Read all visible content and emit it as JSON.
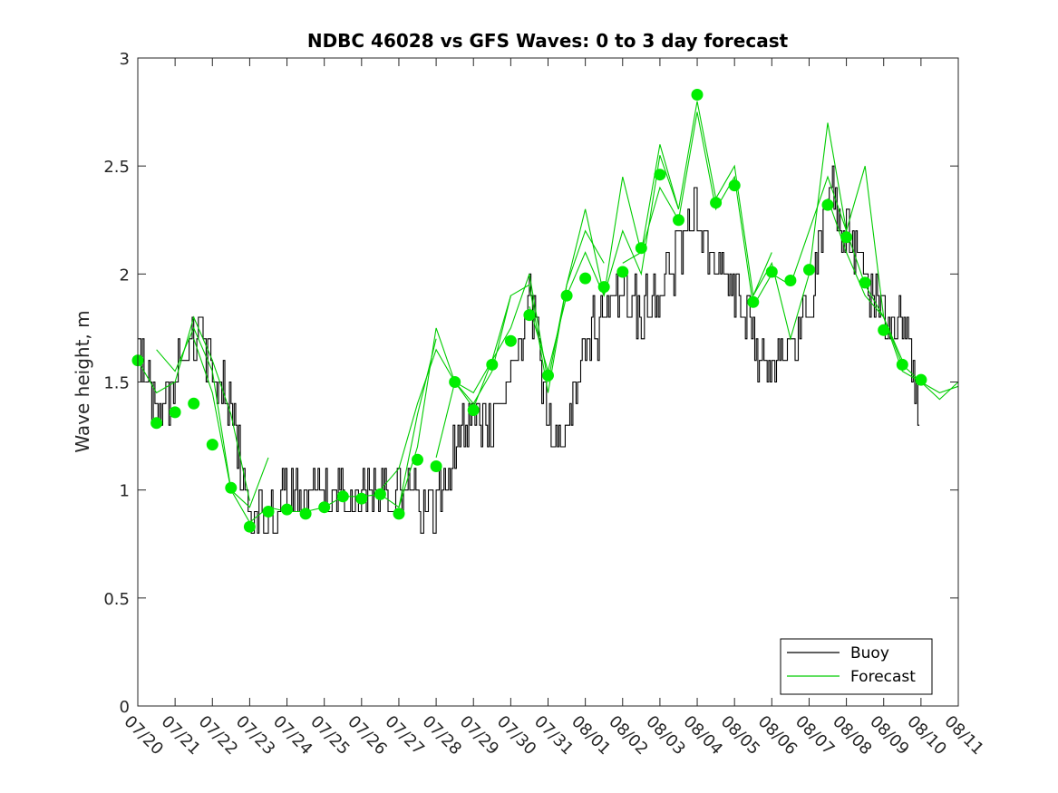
{
  "chart_data": {
    "type": "line",
    "title": "NDBC 46028 vs GFS Waves: 0 to 3 day forecast",
    "xlabel": "",
    "ylabel": "Wave height, m",
    "ylim": [
      0,
      3
    ],
    "yticks": [
      "0",
      "0.5",
      "1",
      "1.5",
      "2",
      "2.5",
      "3"
    ],
    "xlim": [
      "07/20",
      "08/11"
    ],
    "xticks": [
      "07/20",
      "07/21",
      "07/22",
      "07/23",
      "07/24",
      "07/25",
      "07/26",
      "07/27",
      "07/28",
      "07/29",
      "07/30",
      "07/31",
      "08/01",
      "08/02",
      "08/03",
      "08/04",
      "08/05",
      "08/06",
      "08/07",
      "08/08",
      "08/09",
      "08/10",
      "08/11"
    ],
    "grid": false,
    "legend": {
      "position": "bottom-right",
      "entries": [
        "Buoy",
        "Forecast"
      ]
    },
    "colors": {
      "buoy": "#000000",
      "forecast": "#00cc00",
      "analysis_dots": "#00ee00"
    },
    "buoy": {
      "x": [
        "07/20",
        "07/20 12:00",
        "07/21",
        "07/21 12:00",
        "07/22",
        "07/22 12:00",
        "07/23",
        "07/23 12:00",
        "07/24",
        "07/24 12:00",
        "07/25",
        "07/25 12:00",
        "07/26",
        "07/26 12:00",
        "07/27",
        "07/27 12:00",
        "07/28",
        "07/28 12:00",
        "07/29",
        "07/29 12:00",
        "07/30",
        "07/30 12:00",
        "07/31",
        "07/31 12:00",
        "08/01",
        "08/01 12:00",
        "08/02",
        "08/02 12:00",
        "08/03",
        "08/03 12:00",
        "08/04",
        "08/04 12:00",
        "08/05",
        "08/05 12:00",
        "08/06",
        "08/06 12:00",
        "08/07",
        "08/07 12:00",
        "08/08",
        "08/08 12:00",
        "08/09",
        "08/09 12:00",
        "08/10"
      ],
      "values": [
        1.7,
        1.35,
        1.5,
        1.75,
        1.6,
        1.4,
        0.9,
        0.85,
        1.0,
        1.0,
        1.0,
        1.0,
        1.0,
        1.0,
        0.95,
        0.95,
        0.9,
        1.2,
        1.35,
        1.25,
        1.5,
        1.9,
        1.3,
        1.25,
        1.7,
        1.8,
        1.9,
        1.85,
        1.9,
        2.1,
        2.3,
        2.0,
        1.95,
        1.7,
        1.55,
        1.75,
        1.8,
        2.4,
        2.2,
        1.95,
        1.8,
        1.75,
        1.35
      ]
    },
    "forecast": [
      {
        "x": [
          "07/20",
          "07/20 12:00",
          "07/21",
          "07/21 12:00",
          "07/22",
          "07/22 12:00",
          "07/23"
        ],
        "values": [
          1.6,
          1.45,
          1.5,
          1.8,
          1.6,
          1.35,
          0.95
        ]
      },
      {
        "x": [
          "07/20 12:00",
          "07/21",
          "07/21 12:00",
          "07/22",
          "07/22 12:00",
          "07/23",
          "07/23 12:00"
        ],
        "values": [
          1.65,
          1.55,
          1.75,
          1.55,
          1.0,
          0.92,
          1.15
        ]
      },
      {
        "x": [
          "07/21 12:00",
          "07/22",
          "07/22 12:00",
          "07/23",
          "07/23 12:00",
          "07/24",
          "07/24 12:00",
          "07/25",
          "07/25 12:00",
          "07/26",
          "07/26 12:00",
          "07/27",
          "07/27 12:00",
          "07/28"
        ],
        "values": [
          1.7,
          1.45,
          1.0,
          0.85,
          0.92,
          0.9,
          0.9,
          0.92,
          0.97,
          0.97,
          0.98,
          0.92,
          1.35,
          1.7
        ]
      },
      {
        "x": [
          "07/26 12:00",
          "07/27",
          "07/27 12:00",
          "07/28",
          "07/28 12:00",
          "07/29",
          "07/29 12:00",
          "07/30"
        ],
        "values": [
          1.0,
          1.1,
          1.4,
          1.65,
          1.5,
          1.45,
          1.6,
          1.9
        ]
      },
      {
        "x": [
          "07/27",
          "07/27 12:00",
          "07/28",
          "07/28 12:00",
          "07/29",
          "07/29 12:00",
          "07/30",
          "07/30 12:00",
          "07/31",
          "07/31 12:00",
          "08/01",
          "08/01 12:00"
        ],
        "values": [
          0.92,
          1.2,
          1.75,
          1.5,
          1.4,
          1.55,
          1.9,
          1.95,
          1.45,
          1.95,
          2.2,
          2.05
        ]
      },
      {
        "x": [
          "07/28",
          "07/28 12:00",
          "07/29",
          "07/29 12:00",
          "07/30",
          "07/30 12:00",
          "07/31",
          "07/31 12:00",
          "08/01",
          "08/01 12:00",
          "08/02",
          "08/02 12:00",
          "08/03",
          "08/03 12:00"
        ],
        "values": [
          1.15,
          1.5,
          1.38,
          1.6,
          1.75,
          2.0,
          1.5,
          1.95,
          2.3,
          1.9,
          2.45,
          2.1,
          2.6,
          2.3
        ]
      },
      {
        "x": [
          "07/30 12:00",
          "07/31",
          "07/31 12:00",
          "08/01",
          "08/01 12:00",
          "08/02",
          "08/02 12:00",
          "08/03",
          "08/03 12:00",
          "08/04",
          "08/04 12:00",
          "08/05",
          "08/05 12:00",
          "08/06"
        ],
        "values": [
          1.85,
          1.55,
          1.9,
          2.1,
          1.9,
          2.2,
          2.0,
          2.55,
          2.3,
          2.8,
          2.35,
          2.5,
          1.9,
          2.1
        ]
      },
      {
        "x": [
          "08/02",
          "08/02 12:00",
          "08/03",
          "08/03 12:00",
          "08/04",
          "08/04 12:00",
          "08/05",
          "08/05 12:00",
          "08/06",
          "08/06 12:00",
          "08/07",
          "08/07 12:00",
          "08/08",
          "08/08 12:00",
          "08/09",
          "08/09 12:00"
        ],
        "values": [
          2.05,
          2.1,
          2.4,
          2.25,
          2.75,
          2.3,
          2.45,
          1.85,
          2.0,
          1.95,
          2.2,
          2.45,
          2.2,
          1.95,
          1.8,
          1.6
        ]
      },
      {
        "x": [
          "08/05 12:00",
          "08/06",
          "08/06 12:00",
          "08/07",
          "08/07 12:00",
          "08/08",
          "08/08 12:00",
          "08/09",
          "08/09 12:00",
          "08/10",
          "08/10 12:00",
          "08/11"
        ],
        "values": [
          1.9,
          2.05,
          1.7,
          2.0,
          2.7,
          2.2,
          2.5,
          1.8,
          1.58,
          1.5,
          1.42,
          1.5
        ]
      },
      {
        "x": [
          "08/07 12:00",
          "08/08",
          "08/08 12:00",
          "08/09",
          "08/09 12:00",
          "08/10",
          "08/10 12:00",
          "08/11"
        ],
        "values": [
          2.35,
          2.1,
          1.9,
          1.8,
          1.55,
          1.5,
          1.45,
          1.48
        ]
      }
    ],
    "analysis_dots": {
      "x": [
        "07/20",
        "07/20 12:00",
        "07/21",
        "07/21 12:00",
        "07/22",
        "07/22 12:00",
        "07/23",
        "07/23 12:00",
        "07/24",
        "07/24 12:00",
        "07/25",
        "07/25 12:00",
        "07/26",
        "07/26 12:00",
        "07/27",
        "07/27 12:00",
        "07/28",
        "07/28 12:00",
        "07/29",
        "07/29 12:00",
        "07/30",
        "07/30 12:00",
        "07/31",
        "07/31 12:00",
        "08/01",
        "08/01 12:00",
        "08/02",
        "08/02 12:00",
        "08/03",
        "08/03 12:00",
        "08/04",
        "08/04 12:00",
        "08/05",
        "08/05 12:00",
        "08/06",
        "08/06 12:00",
        "08/07",
        "08/07 12:00",
        "08/08",
        "08/08 12:00",
        "08/09",
        "08/09 12:00",
        "08/10"
      ],
      "values": [
        1.6,
        1.31,
        1.36,
        1.4,
        1.21,
        1.01,
        0.83,
        0.9,
        0.91,
        0.89,
        0.92,
        0.97,
        0.96,
        0.98,
        0.89,
        1.14,
        1.11,
        1.5,
        1.37,
        1.58,
        1.69,
        1.81,
        1.53,
        1.9,
        1.98,
        1.94,
        2.01,
        2.12,
        2.46,
        2.25,
        2.83,
        2.33,
        2.41,
        1.87,
        2.01,
        1.97,
        2.02,
        2.32,
        2.17,
        1.96,
        1.74,
        1.58,
        1.51
      ]
    }
  }
}
